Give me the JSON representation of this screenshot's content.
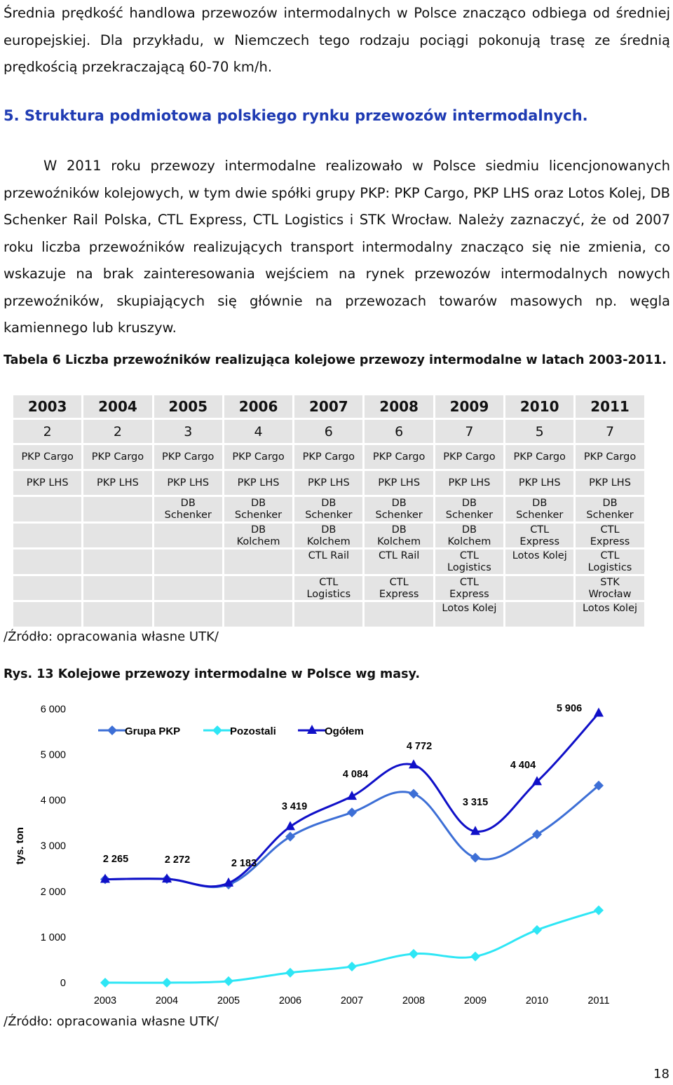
{
  "intro_paragraph": "Średnia prędkość handlowa przewozów intermodalnych w Polsce znacząco odbiega od średniej europejskiej. Dla przykładu, w Niemczech tego rodzaju pociągi pokonują trasę ze średnią prędkością przekraczającą 60-70 km/h.",
  "section_heading": "5. Struktura podmiotowa polskiego rynku przewozów intermodalnych.",
  "body_paragraph": "W 2011 roku przewozy intermodalne realizowało w Polsce siedmiu licencjonowanych przewoźników kolejowych, w tym dwie spółki grupy PKP: PKP Cargo, PKP LHS oraz Lotos Kolej, DB Schenker Rail Polska, CTL Express, CTL Logistics i STK Wrocław. Należy zaznaczyć, że od 2007 roku liczba przewoźników realizujących transport intermodalny znacząco się nie zmienia, co wskazuje na brak zainteresowania wejściem na rynek przewozów intermodalnych nowych przewoźników, skupiających się głównie na przewozach towarów masowych np. węgla kamiennego lub kruszyw.",
  "table_caption": "Tabela 6 Liczba przewoźników realizująca kolejowe przewozy intermodalne w latach 2003-2011.",
  "table": {
    "years": [
      "2003",
      "2004",
      "2005",
      "2006",
      "2007",
      "2008",
      "2009",
      "2010",
      "2011"
    ],
    "counts": [
      "2",
      "2",
      "3",
      "4",
      "6",
      "6",
      "7",
      "5",
      "7"
    ],
    "carriers": [
      [
        "PKP Cargo",
        "PKP Cargo",
        "PKP Cargo",
        "PKP Cargo",
        "PKP Cargo",
        "PKP Cargo",
        "PKP Cargo",
        "PKP Cargo",
        "PKP Cargo"
      ],
      [
        "PKP LHS",
        "PKP LHS",
        "PKP LHS",
        "PKP LHS",
        "PKP LHS",
        "PKP LHS",
        "PKP LHS",
        "PKP LHS",
        "PKP LHS"
      ],
      [
        "",
        "",
        "DB Schenker",
        "DB Schenker",
        "DB Schenker",
        "DB Schenker",
        "DB Schenker",
        "DB Schenker",
        "DB Schenker"
      ],
      [
        "",
        "",
        "",
        "DB Kolchem",
        "DB Kolchem",
        "DB Kolchem",
        "DB Kolchem",
        "CTL Express",
        "CTL Express"
      ],
      [
        "",
        "",
        "",
        "",
        "CTL Rail",
        "CTL Rail",
        "CTL Logistics",
        "Lotos Kolej",
        "CTL Logistics"
      ],
      [
        "",
        "",
        "",
        "",
        "CTL Logistics",
        "CTL Express",
        "CTL Express",
        "",
        "STK Wrocław"
      ],
      [
        "",
        "",
        "",
        "",
        "",
        "",
        "Lotos Kolej",
        "",
        "Lotos Kolej"
      ]
    ]
  },
  "table_source": "/Źródło: opracowania własne UTK/",
  "figure_caption": "Rys. 13 Kolejowe przewozy intermodalne w Polsce wg masy.",
  "chart_data": {
    "type": "line",
    "title": "",
    "xlabel": "",
    "ylabel": "tys. ton",
    "x": [
      "2003",
      "2004",
      "2005",
      "2006",
      "2007",
      "2008",
      "2009",
      "2010",
      "2011"
    ],
    "ylim": [
      0,
      6000
    ],
    "yticks": [
      "0",
      "1 000",
      "2 000",
      "3 000",
      "4 000",
      "5 000",
      "6 000"
    ],
    "legend_position": "top",
    "series": [
      {
        "name": "Grupa PKP",
        "color": "#3d6fd6",
        "marker": "diamond",
        "values": [
          2265,
          2272,
          2150,
          3200,
          3730,
          4140,
          2740,
          3250,
          4320
        ]
      },
      {
        "name": "Pozostali",
        "color": "#2ee6f5",
        "marker": "diamond",
        "values": [
          0,
          0,
          33,
          219,
          354,
          632,
          575,
          1154,
          1586
        ]
      },
      {
        "name": "Ogółem",
        "color": "#1010c8",
        "marker": "triangle",
        "values": [
          2265,
          2272,
          2183,
          3419,
          4084,
          4772,
          3315,
          4404,
          5906
        ]
      }
    ],
    "data_labels": [
      "2 265",
      "2 272",
      "2 183",
      "3 419",
      "4 084",
      "4 772",
      "3 315",
      "4 404",
      "5 906"
    ]
  },
  "chart_source": "/Źródło: opracowania własne UTK/",
  "page_number": "18"
}
